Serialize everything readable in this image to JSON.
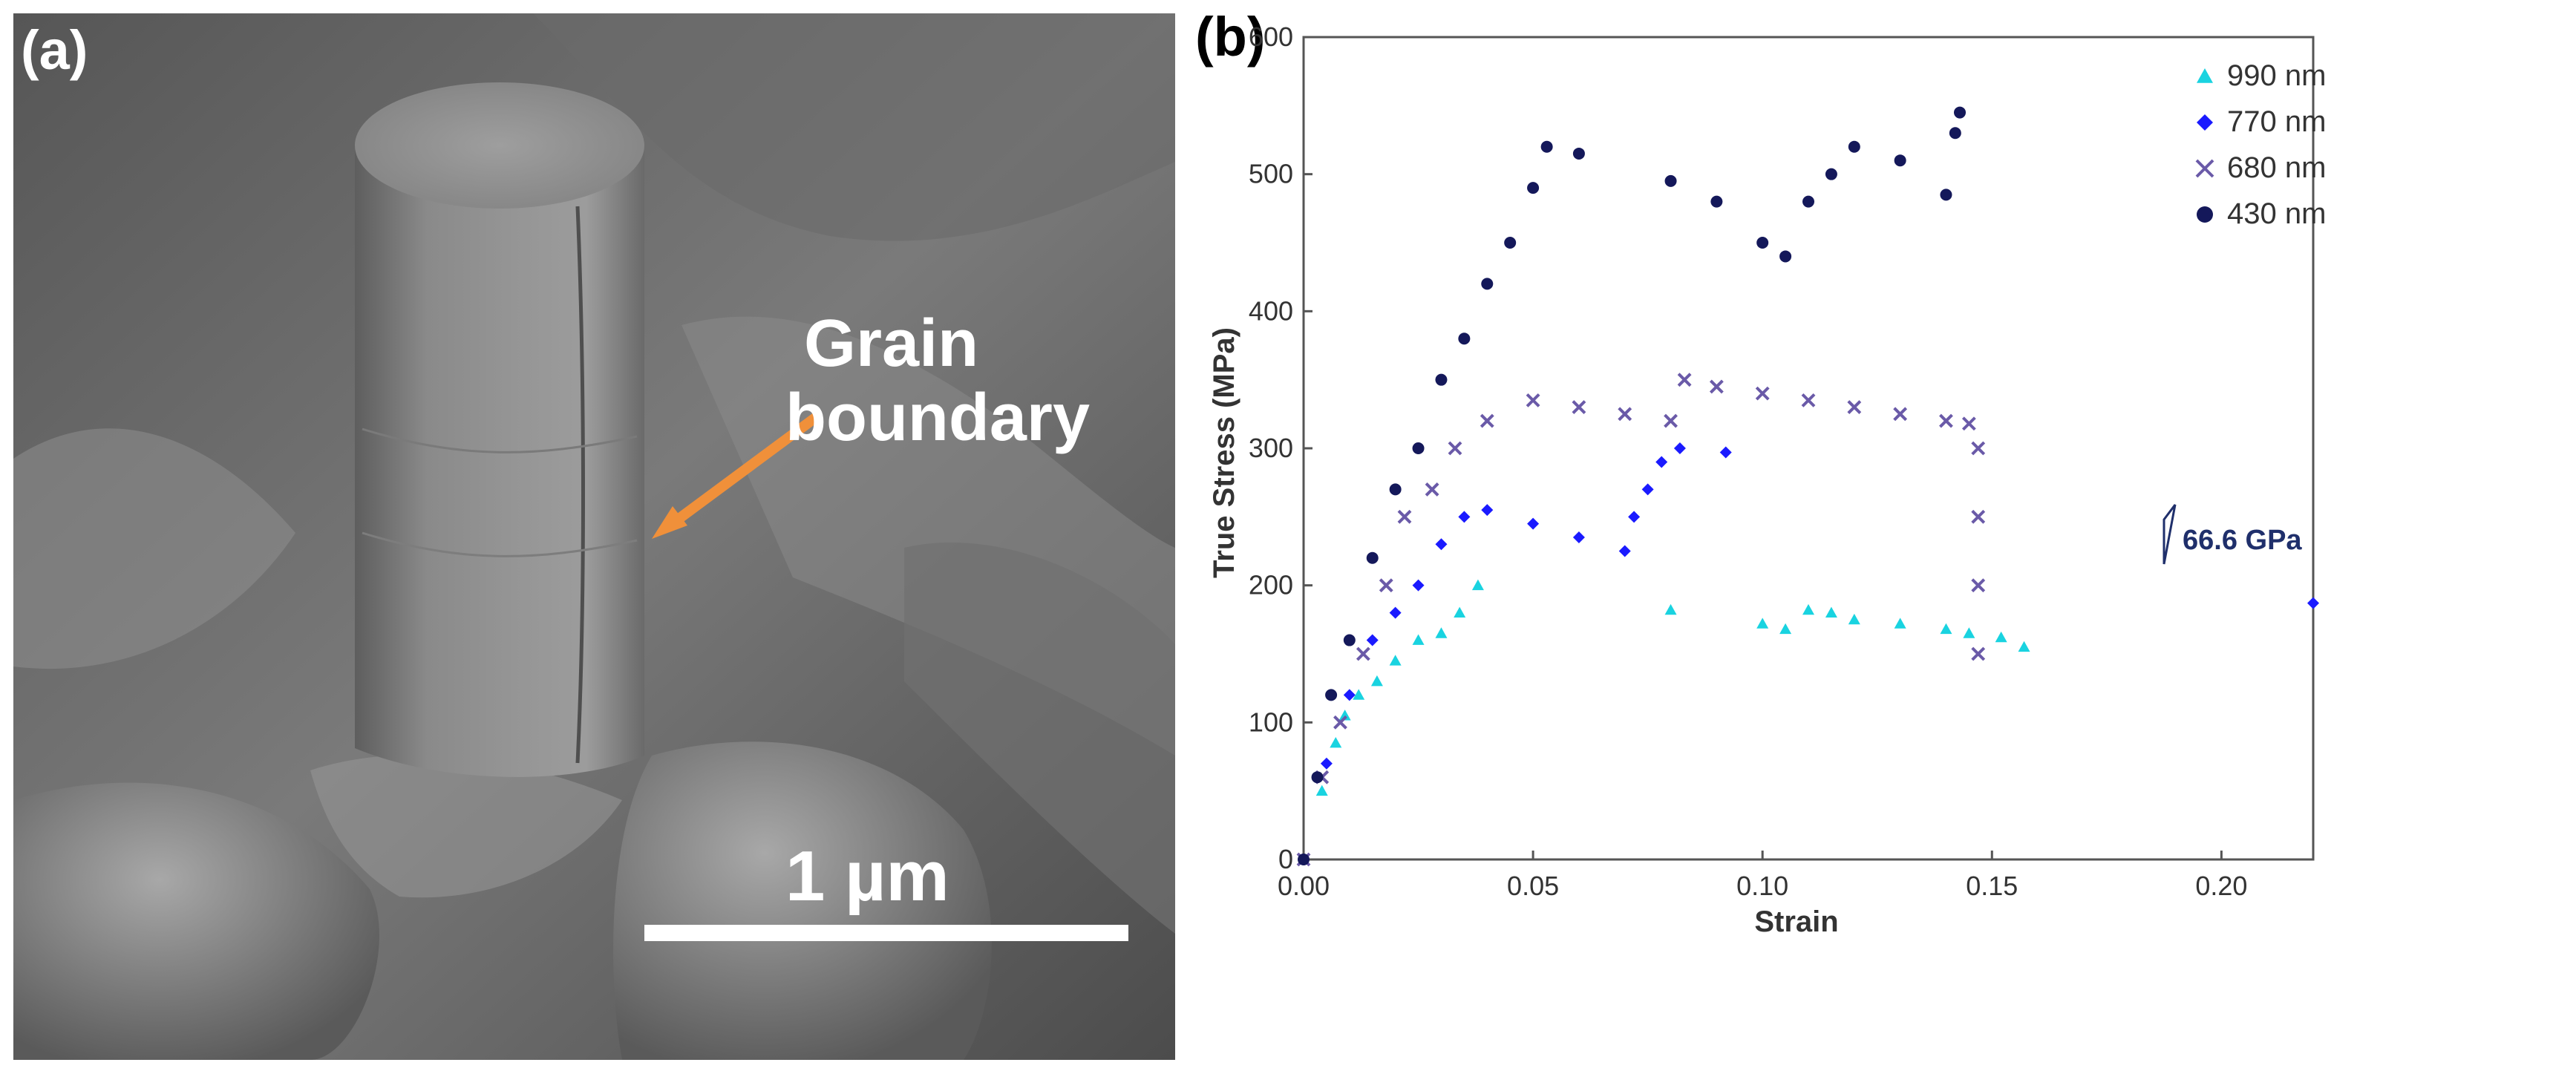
{
  "panel_a": {
    "label": "(a)",
    "annotation_line1": "Grain",
    "annotation_line2": "boundary",
    "scale_bar_label": "1 µm",
    "colors": {
      "arrow": "#f0903a",
      "scale_bar": "#ffffff"
    }
  },
  "panel_b": {
    "label": "(b)",
    "modulus_annotation": "66.6 GPa"
  },
  "chart_data": {
    "type": "scatter",
    "xlabel": "Strain",
    "ylabel": "True Stress (MPa)",
    "xlim": [
      0,
      0.22
    ],
    "ylim": [
      0,
      600
    ],
    "xticks": [
      "0.00",
      "0.05",
      "0.10",
      "0.15",
      "0.20"
    ],
    "yticks": [
      "0",
      "100",
      "200",
      "300",
      "400",
      "500",
      "600"
    ],
    "xtick_values": [
      0,
      0.05,
      0.1,
      0.15,
      0.2
    ],
    "ytick_values": [
      0,
      100,
      200,
      300,
      400,
      500,
      600
    ],
    "legend_position": "top-right",
    "grid": false,
    "series": [
      {
        "name": "990 nm",
        "marker": "triangle",
        "color": "#19d3e0",
        "points": [
          [
            0,
            0
          ],
          [
            0.004,
            50
          ],
          [
            0.007,
            85
          ],
          [
            0.009,
            105
          ],
          [
            0.012,
            120
          ],
          [
            0.016,
            130
          ],
          [
            0.02,
            145
          ],
          [
            0.025,
            160
          ],
          [
            0.03,
            165
          ],
          [
            0.034,
            180
          ],
          [
            0.038,
            200
          ],
          [
            0.08,
            182
          ],
          [
            0.1,
            172
          ],
          [
            0.105,
            168
          ],
          [
            0.11,
            182
          ],
          [
            0.115,
            180
          ],
          [
            0.12,
            175
          ],
          [
            0.13,
            172
          ],
          [
            0.14,
            168
          ],
          [
            0.145,
            165
          ],
          [
            0.152,
            162
          ],
          [
            0.157,
            155
          ]
        ]
      },
      {
        "name": "770 nm",
        "marker": "diamond",
        "color": "#1a1aff",
        "points": [
          [
            0,
            0
          ],
          [
            0.005,
            70
          ],
          [
            0.01,
            120
          ],
          [
            0.015,
            160
          ],
          [
            0.02,
            180
          ],
          [
            0.025,
            200
          ],
          [
            0.03,
            230
          ],
          [
            0.035,
            250
          ],
          [
            0.04,
            255
          ],
          [
            0.05,
            245
          ],
          [
            0.06,
            235
          ],
          [
            0.07,
            225
          ],
          [
            0.072,
            250
          ],
          [
            0.075,
            270
          ],
          [
            0.078,
            290
          ],
          [
            0.082,
            300
          ],
          [
            0.092,
            297
          ],
          [
            0.22,
            187
          ]
        ]
      },
      {
        "name": "680 nm",
        "marker": "x",
        "color": "#6a5aa8",
        "points": [
          [
            0,
            0
          ],
          [
            0.004,
            60
          ],
          [
            0.008,
            100
          ],
          [
            0.013,
            150
          ],
          [
            0.018,
            200
          ],
          [
            0.022,
            250
          ],
          [
            0.028,
            270
          ],
          [
            0.033,
            300
          ],
          [
            0.04,
            320
          ],
          [
            0.05,
            335
          ],
          [
            0.06,
            330
          ],
          [
            0.07,
            325
          ],
          [
            0.08,
            320
          ],
          [
            0.083,
            350
          ],
          [
            0.09,
            345
          ],
          [
            0.1,
            340
          ],
          [
            0.11,
            335
          ],
          [
            0.12,
            330
          ],
          [
            0.13,
            325
          ],
          [
            0.14,
            320
          ],
          [
            0.145,
            318
          ],
          [
            0.147,
            300
          ],
          [
            0.147,
            250
          ],
          [
            0.147,
            200
          ],
          [
            0.147,
            150
          ]
        ]
      },
      {
        "name": "430 nm",
        "marker": "circle",
        "color": "#14185a",
        "points": [
          [
            0,
            0
          ],
          [
            0.003,
            60
          ],
          [
            0.006,
            120
          ],
          [
            0.01,
            160
          ],
          [
            0.015,
            220
          ],
          [
            0.02,
            270
          ],
          [
            0.025,
            300
          ],
          [
            0.03,
            350
          ],
          [
            0.035,
            380
          ],
          [
            0.04,
            420
          ],
          [
            0.045,
            450
          ],
          [
            0.05,
            490
          ],
          [
            0.053,
            520
          ],
          [
            0.06,
            515
          ],
          [
            0.08,
            495
          ],
          [
            0.09,
            480
          ],
          [
            0.1,
            450
          ],
          [
            0.105,
            440
          ],
          [
            0.11,
            480
          ],
          [
            0.115,
            500
          ],
          [
            0.12,
            520
          ],
          [
            0.13,
            510
          ],
          [
            0.14,
            485
          ],
          [
            0.142,
            530
          ],
          [
            0.143,
            545
          ]
        ]
      }
    ]
  }
}
